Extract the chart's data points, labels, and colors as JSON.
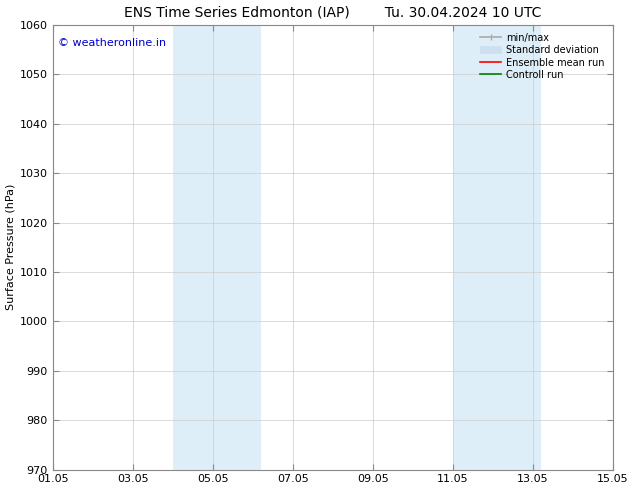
{
  "title_left": "ENS Time Series Edmonton (IAP)",
  "title_right": "Tu. 30.04.2024 10 UTC",
  "ylabel": "Surface Pressure (hPa)",
  "ylim": [
    970,
    1060
  ],
  "yticks": [
    970,
    980,
    990,
    1000,
    1010,
    1020,
    1030,
    1040,
    1050,
    1060
  ],
  "xlim": [
    0,
    14
  ],
  "xtick_labels": [
    "01.05",
    "03.05",
    "05.05",
    "07.05",
    "09.05",
    "11.05",
    "13.05",
    "15.05"
  ],
  "xtick_positions": [
    0,
    2,
    4,
    6,
    8,
    10,
    12,
    14
  ],
  "shaded_regions": [
    {
      "x_start": 3.0,
      "x_end": 5.2,
      "color": "#ddeef8"
    },
    {
      "x_start": 10.0,
      "x_end": 12.2,
      "color": "#ddeef8"
    }
  ],
  "watermark_text": "© weatheronline.in",
  "watermark_color": "#0000cc",
  "background_color": "#ffffff",
  "grid_color": "#cccccc",
  "spine_color": "#888888",
  "legend_items": [
    {
      "label": "min/max",
      "color": "#aaaaaa",
      "lw": 1.2
    },
    {
      "label": "Standard deviation",
      "color": "#cce0f0",
      "lw": 6
    },
    {
      "label": "Ensemble mean run",
      "color": "#ff0000",
      "lw": 1.2
    },
    {
      "label": "Controll run",
      "color": "#008000",
      "lw": 1.2
    }
  ],
  "title_fontsize": 10,
  "label_fontsize": 8,
  "tick_fontsize": 8,
  "legend_fontsize": 7
}
